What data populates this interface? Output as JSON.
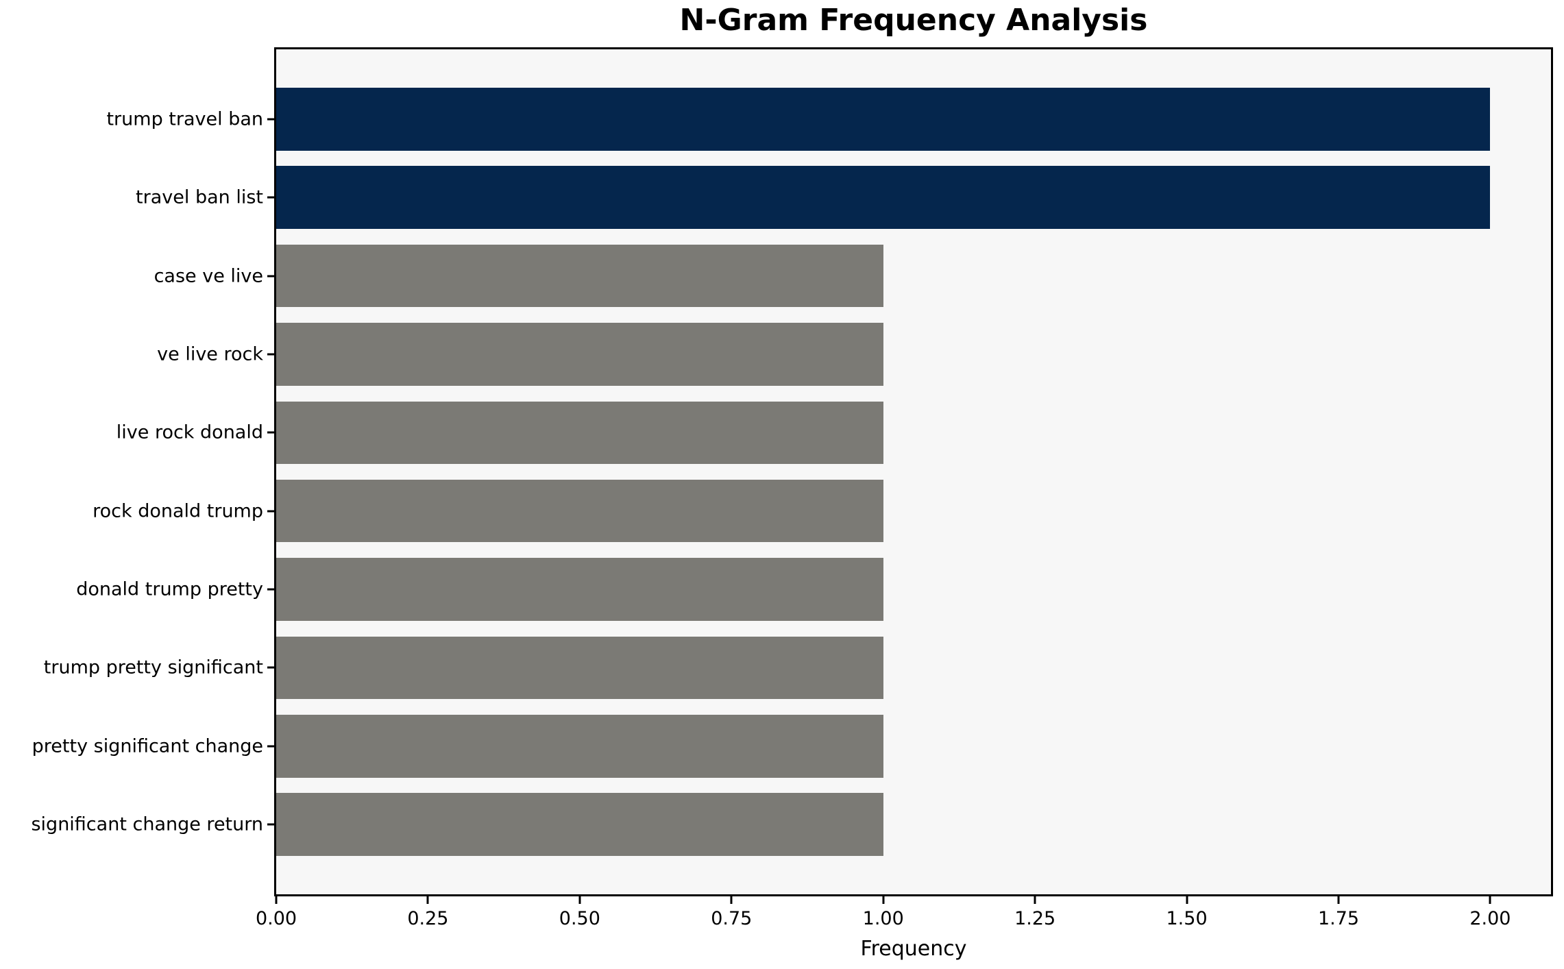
{
  "chart_data": {
    "type": "bar",
    "orientation": "horizontal",
    "title": "N-Gram Frequency Analysis",
    "xlabel": "Frequency",
    "ylabel": "",
    "categories": [
      "trump travel ban",
      "travel ban list",
      "case ve live",
      "ve live rock",
      "live rock donald",
      "rock donald trump",
      "donald trump pretty",
      "trump pretty significant",
      "pretty significant change",
      "significant change return"
    ],
    "values": [
      2,
      2,
      1,
      1,
      1,
      1,
      1,
      1,
      1,
      1
    ],
    "bar_colors": [
      "#05264d",
      "#05264d",
      "#7b7a75",
      "#7b7a75",
      "#7b7a75",
      "#7b7a75",
      "#7b7a75",
      "#7b7a75",
      "#7b7a75",
      "#7b7a75"
    ],
    "xlim": [
      0,
      2.1
    ],
    "x_ticks": [
      0.0,
      0.25,
      0.5,
      0.75,
      1.0,
      1.25,
      1.5,
      1.75,
      2.0
    ],
    "x_tick_labels": [
      "0.00",
      "0.25",
      "0.50",
      "0.75",
      "1.00",
      "1.25",
      "1.50",
      "1.75",
      "2.00"
    ],
    "grid": false,
    "legend": null,
    "colors": {
      "highlight_bar": "#05264d",
      "default_bar": "#7b7a75",
      "plot_background": "#f7f7f7",
      "figure_background": "#ffffff",
      "spine": "#000000",
      "text": "#000000"
    }
  }
}
